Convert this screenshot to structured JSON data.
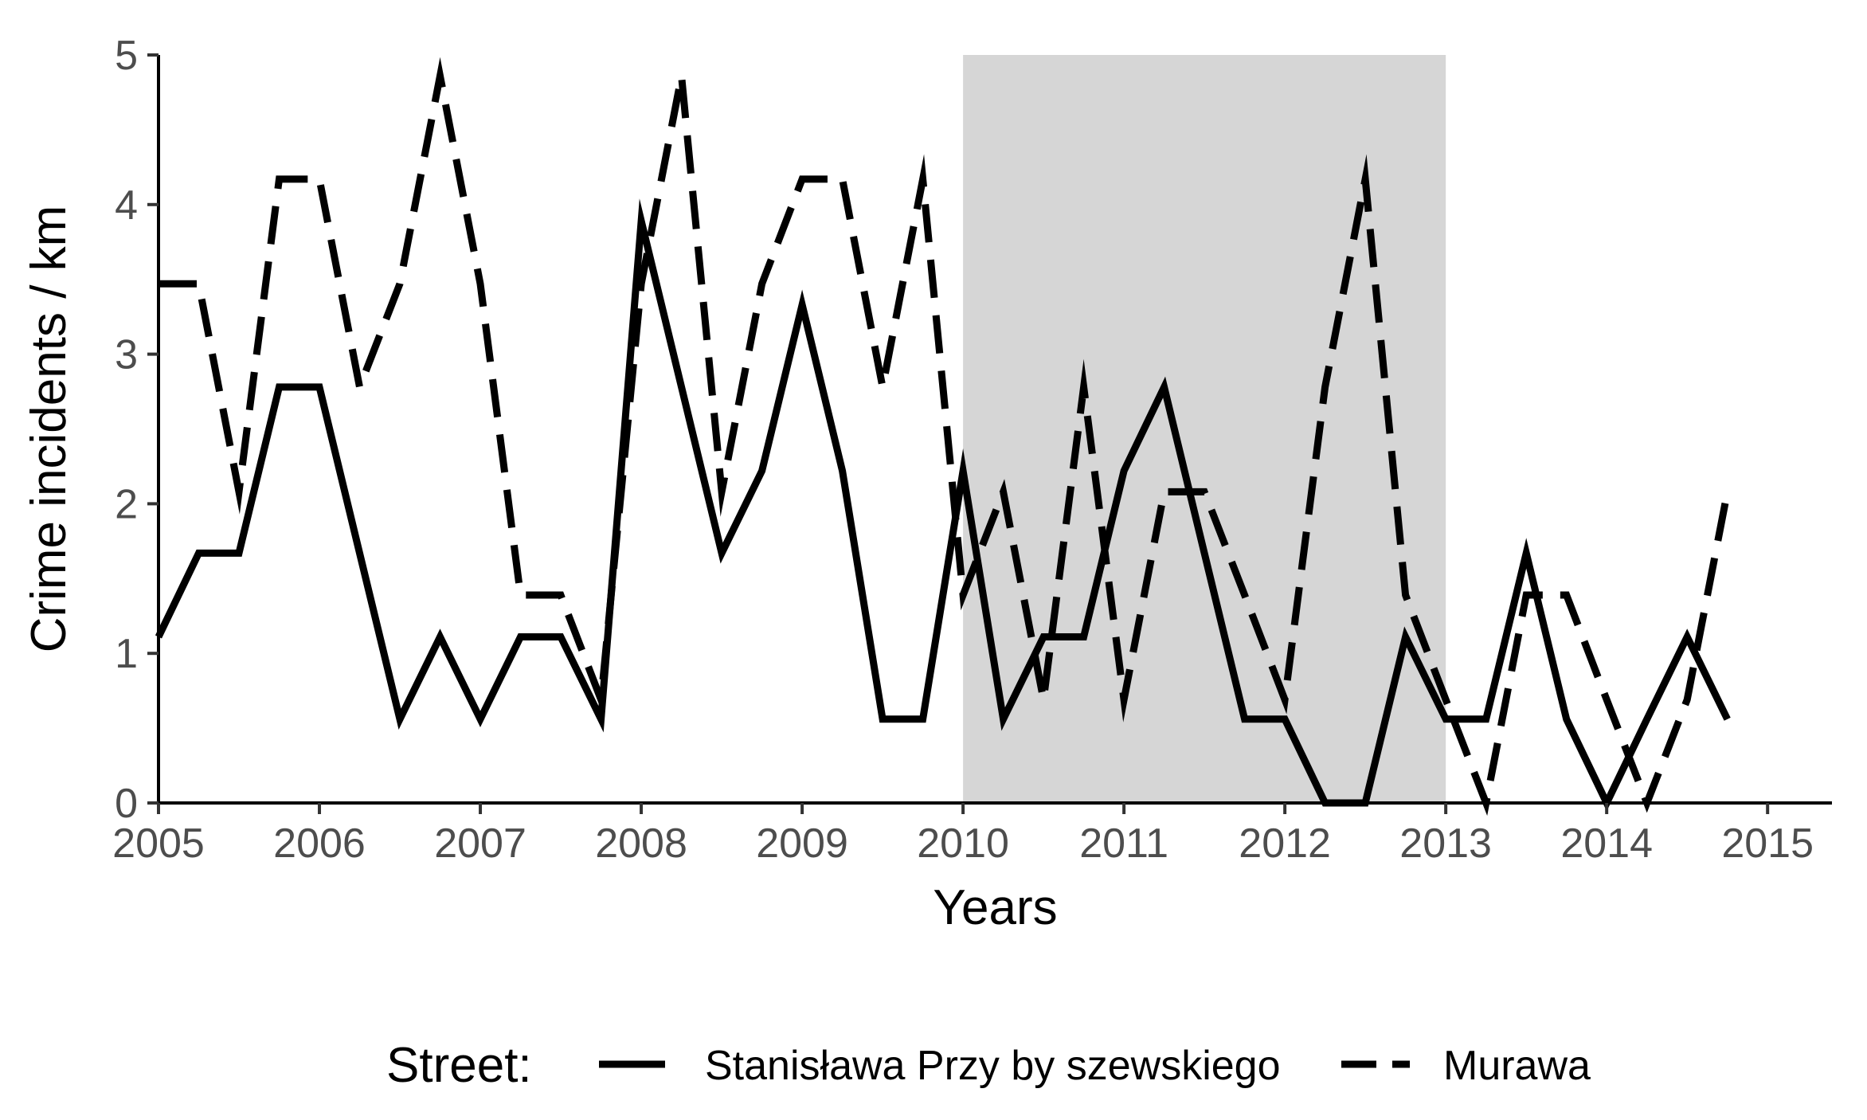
{
  "chart_data": {
    "type": "line",
    "title": "",
    "xlabel": "Years",
    "ylabel": "Crime incidents / km",
    "xlim": [
      2005,
      2015.4
    ],
    "ylim": [
      0,
      5
    ],
    "x_ticks": [
      2005,
      2006,
      2007,
      2008,
      2009,
      2010,
      2011,
      2012,
      2013,
      2014,
      2015
    ],
    "x_tick_labels": [
      "2005",
      "2006",
      "2007",
      "2008",
      "2009",
      "2010",
      "2011",
      "2012",
      "2013",
      "2014",
      "2015"
    ],
    "y_ticks": [
      0,
      1,
      2,
      3,
      4,
      5
    ],
    "y_tick_labels": [
      "0",
      "1",
      "2",
      "3",
      "4",
      "5"
    ],
    "shaded_region": {
      "x_start": 2010,
      "x_end": 2013,
      "color": "#d6d6d6"
    },
    "grid": false,
    "legend": {
      "title": "Street:",
      "position": "bottom"
    },
    "x": [
      2005.0,
      2005.25,
      2005.5,
      2005.75,
      2006.0,
      2006.25,
      2006.5,
      2006.75,
      2007.0,
      2007.25,
      2007.5,
      2007.75,
      2008.0,
      2008.25,
      2008.5,
      2008.75,
      2009.0,
      2009.25,
      2009.5,
      2009.75,
      2010.0,
      2010.25,
      2010.5,
      2010.75,
      2011.0,
      2011.25,
      2011.5,
      2011.75,
      2012.0,
      2012.25,
      2012.5,
      2012.75,
      2013.0,
      2013.25,
      2013.5,
      2013.75,
      2014.0,
      2014.25,
      2014.5,
      2014.75
    ],
    "series": [
      {
        "name": "Stanisława Przy by szewskiego",
        "style": "solid",
        "color": "#000000",
        "values": [
          1.11,
          1.67,
          1.67,
          2.78,
          2.78,
          1.67,
          0.56,
          1.11,
          0.56,
          1.11,
          1.11,
          0.56,
          3.89,
          2.78,
          1.67,
          2.22,
          3.33,
          2.22,
          0.56,
          0.56,
          2.22,
          0.56,
          1.11,
          1.11,
          2.22,
          2.78,
          1.67,
          0.56,
          0.56,
          0.0,
          0.0,
          1.11,
          0.56,
          0.56,
          1.67,
          0.56,
          0.0,
          0.56,
          1.11,
          0.56
        ]
      },
      {
        "name": "Murawa",
        "style": "dashed",
        "color": "#000000",
        "values": [
          3.47,
          3.47,
          2.08,
          4.17,
          4.17,
          2.78,
          3.47,
          4.86,
          3.47,
          1.39,
          1.39,
          0.69,
          3.47,
          4.86,
          2.08,
          3.47,
          4.17,
          4.17,
          2.78,
          4.17,
          1.39,
          2.08,
          0.69,
          2.78,
          0.69,
          2.08,
          2.08,
          1.39,
          0.69,
          2.78,
          4.17,
          1.39,
          0.69,
          0.0,
          1.39,
          1.39,
          0.69,
          0.0,
          0.69,
          2.08
        ]
      }
    ]
  }
}
